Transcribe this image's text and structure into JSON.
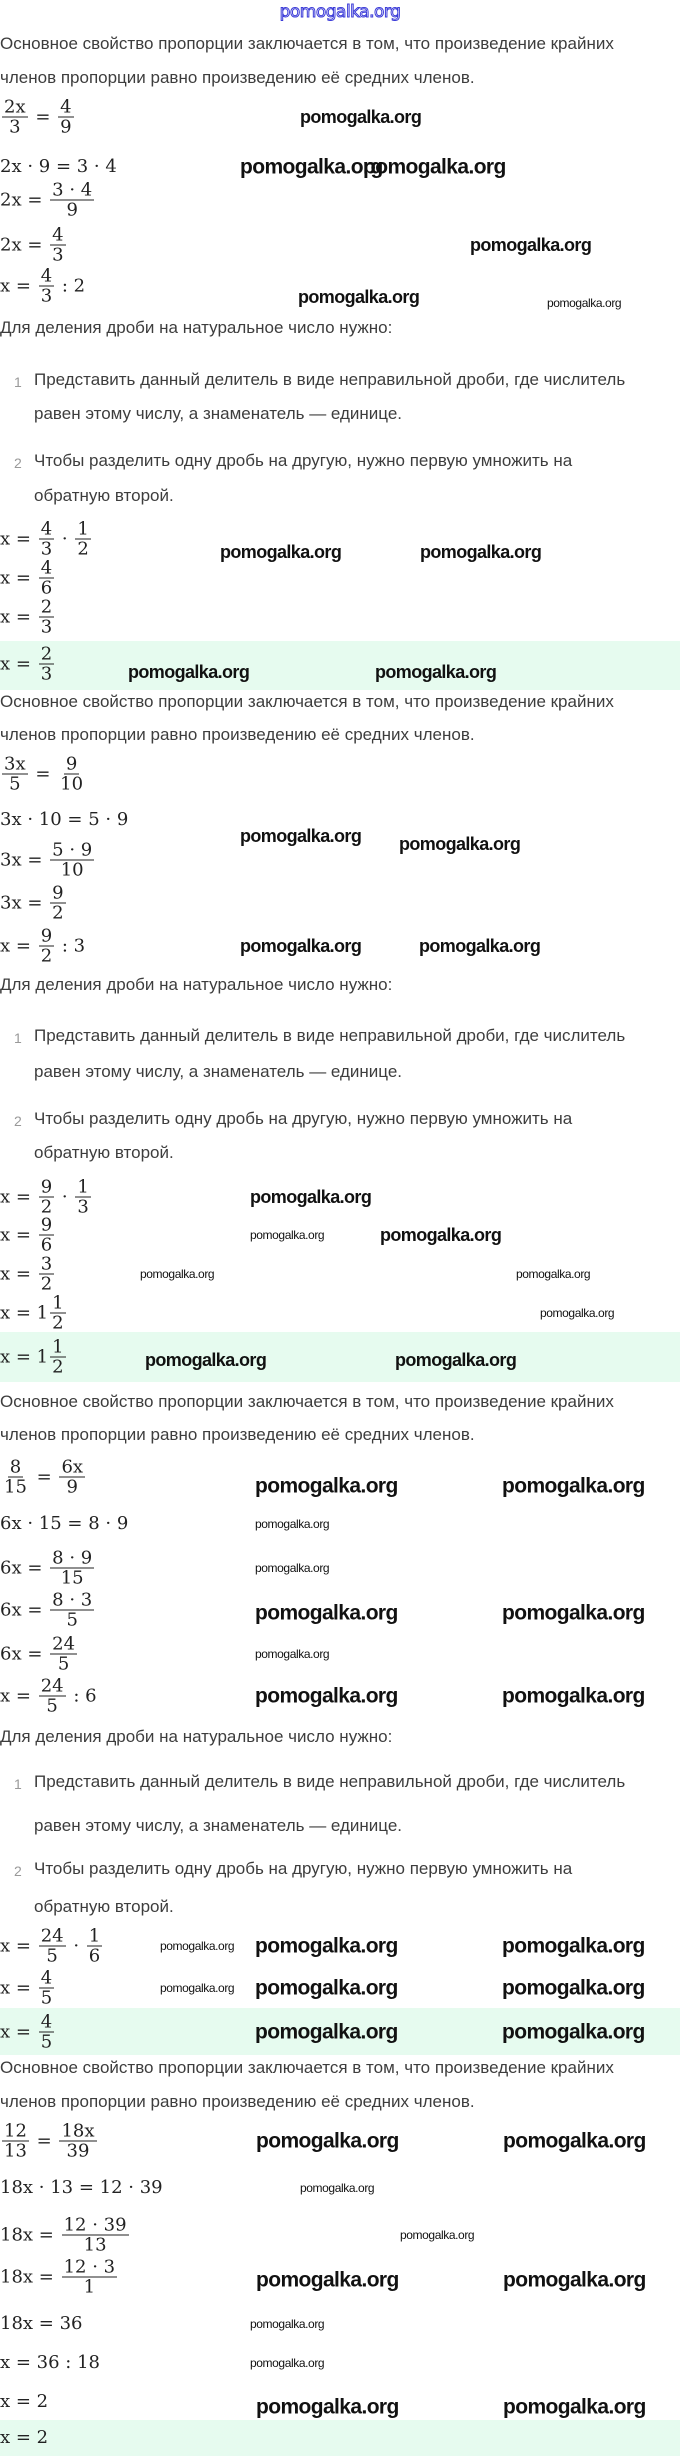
{
  "header_watermark": "pomogalka.org",
  "watermark": "pomogalka.org",
  "colors": {
    "answer_highlight": "#e6fbef",
    "text": "#3d3d3d",
    "header_watermark": "#3b3bd8"
  },
  "sections": [
    {
      "rows": [
        {
          "type": "text",
          "lines": [
            "Основное свойство пропорции заключается в том, что произведение крайних",
            "членов пропорции равно произведению её средних членов."
          ]
        },
        {
          "type": "math",
          "parts": [
            {
              "n": "2x",
              "d": "3"
            },
            " = ",
            {
              "n": "4",
              "d": "9"
            }
          ]
        },
        {
          "type": "math",
          "parts": [
            "2x · 9 = 3 · 4"
          ]
        },
        {
          "type": "math",
          "parts": [
            "2x = ",
            {
              "n": "3 · 4",
              "d": "9"
            }
          ]
        },
        {
          "type": "math",
          "parts": [
            "2x = ",
            {
              "n": "4",
              "d": "3"
            }
          ]
        },
        {
          "type": "math",
          "parts": [
            "x = ",
            {
              "n": "4",
              "d": "3"
            },
            " : 2"
          ]
        },
        {
          "type": "text",
          "lines": [
            "Для деления дроби на натуральное число нужно:"
          ]
        },
        {
          "type": "list",
          "items": [
            {
              "num": "1",
              "lines": [
                "Представить данный делитель в виде неправильной дроби, где числитель",
                "равен этому числу, а знаменатель — единице."
              ]
            },
            {
              "num": "2",
              "lines": [
                "Чтобы разделить одну дробь на другую, нужно первую умножить на",
                "обратную второй."
              ]
            }
          ]
        },
        {
          "type": "math",
          "parts": [
            "x = ",
            {
              "n": "4",
              "d": "3"
            },
            " · ",
            {
              "n": "1",
              "d": "2"
            }
          ]
        },
        {
          "type": "math",
          "parts": [
            "x = ",
            {
              "n": "4",
              "d": "6"
            }
          ]
        },
        {
          "type": "math",
          "parts": [
            "x = ",
            {
              "n": "2",
              "d": "3"
            }
          ]
        },
        {
          "type": "answer",
          "parts": [
            "x = ",
            {
              "n": "2",
              "d": "3"
            }
          ]
        }
      ]
    },
    {
      "rows": [
        {
          "type": "text",
          "lines": [
            "Основное свойство пропорции заключается в том, что произведение крайних",
            "членов пропорции равно произведению её средних членов."
          ]
        },
        {
          "type": "math",
          "parts": [
            {
              "n": "3x",
              "d": "5"
            },
            " = ",
            {
              "n": "9",
              "d": "10"
            }
          ]
        },
        {
          "type": "math",
          "parts": [
            "3x · 10 = 5 · 9"
          ]
        },
        {
          "type": "math",
          "parts": [
            "3x = ",
            {
              "n": "5 · 9",
              "d": "10"
            }
          ]
        },
        {
          "type": "math",
          "parts": [
            "3x = ",
            {
              "n": "9",
              "d": "2"
            }
          ]
        },
        {
          "type": "math",
          "parts": [
            "x = ",
            {
              "n": "9",
              "d": "2"
            },
            " : 3"
          ]
        },
        {
          "type": "text",
          "lines": [
            "Для деления дроби на натуральное число нужно:"
          ]
        },
        {
          "type": "list",
          "items": [
            {
              "num": "1",
              "lines": [
                "Представить данный делитель в виде неправильной дроби, где числитель",
                "равен этому числу, а знаменатель — единице."
              ]
            },
            {
              "num": "2",
              "lines": [
                "Чтобы разделить одну дробь на другую, нужно первую умножить на",
                "обратную второй."
              ]
            }
          ]
        },
        {
          "type": "math",
          "parts": [
            "x = ",
            {
              "n": "9",
              "d": "2"
            },
            " · ",
            {
              "n": "1",
              "d": "3"
            }
          ]
        },
        {
          "type": "math",
          "parts": [
            "x = ",
            {
              "n": "9",
              "d": "6"
            }
          ]
        },
        {
          "type": "math",
          "parts": [
            "x = ",
            {
              "n": "3",
              "d": "2"
            }
          ]
        },
        {
          "type": "math",
          "parts": [
            "x = 1",
            {
              "n": "1",
              "d": "2"
            }
          ]
        },
        {
          "type": "answer",
          "parts": [
            "x = 1",
            {
              "n": "1",
              "d": "2"
            }
          ]
        }
      ]
    },
    {
      "rows": [
        {
          "type": "text",
          "lines": [
            "Основное свойство пропорции заключается в том, что произведение крайних",
            "членов пропорции равно произведению её средних членов."
          ]
        },
        {
          "type": "math",
          "parts": [
            {
              "n": "8",
              "d": "15"
            },
            " = ",
            {
              "n": "6x",
              "d": "9"
            }
          ]
        },
        {
          "type": "math",
          "parts": [
            "6x · 15 = 8 · 9"
          ]
        },
        {
          "type": "math",
          "parts": [
            "6x = ",
            {
              "n": "8 · 9",
              "d": "15"
            }
          ]
        },
        {
          "type": "math",
          "parts": [
            "6x = ",
            {
              "n": "8 · 3",
              "d": "5"
            }
          ]
        },
        {
          "type": "math",
          "parts": [
            "6x = ",
            {
              "n": "24",
              "d": "5"
            }
          ]
        },
        {
          "type": "math",
          "parts": [
            "x = ",
            {
              "n": "24",
              "d": "5"
            },
            " : 6"
          ]
        },
        {
          "type": "text",
          "lines": [
            "Для деления дроби на натуральное число нужно:"
          ]
        },
        {
          "type": "list",
          "items": [
            {
              "num": "1",
              "lines": [
                "Представить данный делитель в виде неправильной дроби, где числитель",
                "равен этому числу, а знаменатель — единице."
              ]
            },
            {
              "num": "2",
              "lines": [
                "Чтобы разделить одну дробь на другую, нужно первую умножить на",
                "обратную второй."
              ]
            }
          ]
        },
        {
          "type": "math",
          "parts": [
            "x = ",
            {
              "n": "24",
              "d": "5"
            },
            " · ",
            {
              "n": "1",
              "d": "6"
            }
          ]
        },
        {
          "type": "math",
          "parts": [
            "x = ",
            {
              "n": "4",
              "d": "5"
            }
          ]
        },
        {
          "type": "answer",
          "parts": [
            "x = ",
            {
              "n": "4",
              "d": "5"
            }
          ]
        }
      ]
    },
    {
      "rows": [
        {
          "type": "text",
          "lines": [
            "Основное свойство пропорции заключается в том, что произведение крайних",
            "членов пропорции равно произведению её средних членов."
          ]
        },
        {
          "type": "math",
          "parts": [
            {
              "n": "12",
              "d": "13"
            },
            " = ",
            {
              "n": "18x",
              "d": "39"
            }
          ]
        },
        {
          "type": "math",
          "parts": [
            "18x · 13 = 12 · 39"
          ]
        },
        {
          "type": "math",
          "parts": [
            "18x = ",
            {
              "n": "12 · 39",
              "d": "13"
            }
          ]
        },
        {
          "type": "math",
          "parts": [
            "18x = ",
            {
              "n": "12 · 3",
              "d": "1"
            }
          ]
        },
        {
          "type": "math",
          "parts": [
            "18x = 36"
          ]
        },
        {
          "type": "math",
          "parts": [
            "x = 36 : 18"
          ]
        },
        {
          "type": "math",
          "parts": [
            "x = 2"
          ]
        },
        {
          "type": "answer",
          "parts": [
            "x = 2"
          ]
        }
      ]
    }
  ]
}
